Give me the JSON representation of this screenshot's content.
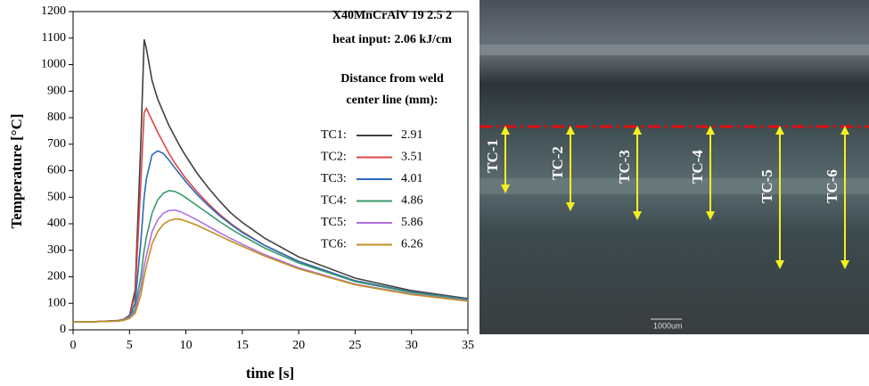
{
  "chart_data": {
    "type": "line",
    "annotations": [
      "X40MnCrAlV 19 2.5 2",
      "heat input: 2.06 kJ/cm"
    ],
    "legend_title": [
      "Distance from weld",
      "center line (mm):"
    ],
    "x_label": "time [s]",
    "y_label": "Temperature [°C]",
    "x": [
      0,
      2,
      4,
      4.5,
      5,
      5.5,
      6,
      6.3,
      6.5,
      7,
      7.5,
      8,
      8.5,
      9,
      9.5,
      10,
      11,
      12,
      13,
      14,
      15,
      17,
      20,
      25,
      30,
      35
    ],
    "series": [
      {
        "name": "TC1:",
        "distance": "2.91",
        "color": "#404040",
        "values": [
          30,
          31,
          35,
          40,
          55,
          150,
          700,
          1095,
          1060,
          940,
          870,
          820,
          770,
          730,
          690,
          655,
          590,
          535,
          485,
          440,
          405,
          345,
          275,
          195,
          148,
          118
        ]
      },
      {
        "name": "TC2:",
        "distance": "3.51",
        "color": "#e04646",
        "values": [
          30,
          31,
          35,
          40,
          55,
          130,
          550,
          820,
          835,
          790,
          745,
          705,
          665,
          630,
          600,
          570,
          520,
          475,
          435,
          400,
          370,
          318,
          258,
          185,
          143,
          115
        ]
      },
      {
        "name": "TC3:",
        "distance": "4.01",
        "color": "#2a6ab8",
        "values": [
          30,
          31,
          34,
          39,
          52,
          100,
          330,
          500,
          570,
          660,
          675,
          665,
          640,
          612,
          585,
          558,
          510,
          468,
          430,
          397,
          367,
          318,
          258,
          185,
          143,
          115
        ]
      },
      {
        "name": "TC4:",
        "distance": "4.86",
        "color": "#3a9a6a",
        "values": [
          30,
          31,
          34,
          38,
          48,
          80,
          200,
          300,
          350,
          440,
          490,
          515,
          525,
          522,
          512,
          498,
          468,
          438,
          408,
          380,
          355,
          308,
          252,
          182,
          141,
          113
        ]
      },
      {
        "name": "TC5:",
        "distance": "5.86",
        "color": "#b070e0",
        "values": [
          30,
          31,
          33,
          37,
          45,
          70,
          160,
          240,
          280,
          370,
          415,
          440,
          450,
          452,
          446,
          436,
          414,
          390,
          366,
          344,
          323,
          283,
          234,
          172,
          135,
          110
        ]
      },
      {
        "name": "TC6:",
        "distance": "6.26",
        "color": "#c09020",
        "values": [
          30,
          31,
          33,
          36,
          43,
          62,
          130,
          200,
          240,
          325,
          370,
          398,
          412,
          418,
          417,
          410,
          394,
          374,
          354,
          334,
          315,
          278,
          230,
          170,
          133,
          108
        ]
      }
    ],
    "xlim": [
      0,
      35
    ],
    "xticks": [
      0,
      5,
      10,
      15,
      20,
      25,
      30,
      35
    ],
    "ylim": [
      0,
      1200
    ],
    "yticks": [
      0,
      100,
      200,
      300,
      400,
      500,
      600,
      700,
      800,
      900,
      1000,
      1100,
      1200
    ]
  },
  "photo": {
    "labels": [
      "TC-1",
      "TC-2",
      "TC-3",
      "TC-4",
      "TC-5",
      "TC-6"
    ],
    "scale_bar": "1000um"
  }
}
